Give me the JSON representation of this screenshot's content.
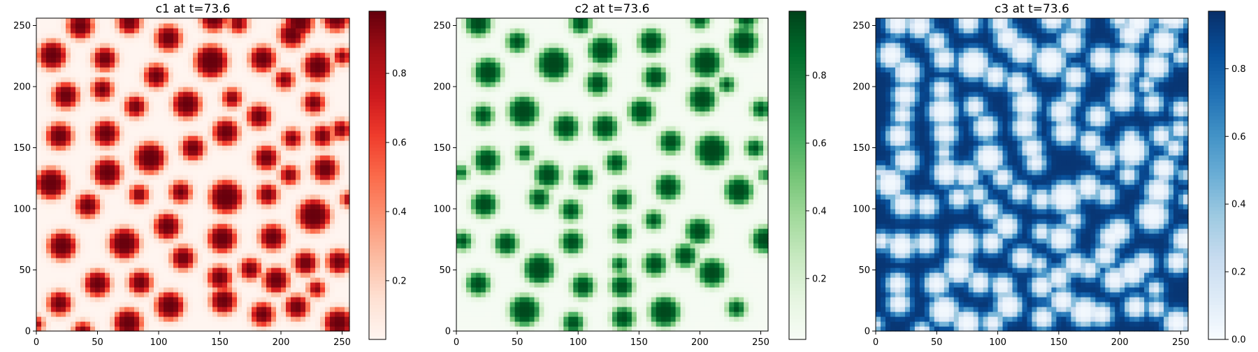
{
  "chart_data": [
    {
      "type": "heatmap",
      "title": "c1 at t=73.6",
      "colormap": "Reds",
      "colors": [
        "#fff5f0",
        "#fee0d2",
        "#fcbba1",
        "#fc9272",
        "#fb6a4a",
        "#ef3b2c",
        "#cb181d",
        "#a50f15",
        "#67000d"
      ],
      "xlim": [
        0,
        256
      ],
      "ylim": [
        0,
        256
      ],
      "xticks": [
        0,
        50,
        100,
        150,
        200,
        250
      ],
      "yticks": [
        0,
        50,
        100,
        150,
        200,
        250
      ],
      "colorbar_range": [
        0.03,
        0.98
      ],
      "colorbar_ticks": [
        0.2,
        0.4,
        0.6,
        0.8
      ],
      "pattern": "spots",
      "spots": [
        [
          36,
          250,
          10
        ],
        [
          76,
          253,
          9
        ],
        [
          145,
          256,
          10
        ],
        [
          165,
          252,
          7
        ],
        [
          215,
          253,
          11
        ],
        [
          245,
          256,
          10
        ],
        [
          13,
          226,
          11
        ],
        [
          56,
          223,
          9
        ],
        [
          108,
          240,
          10
        ],
        [
          143,
          221,
          13
        ],
        [
          185,
          223,
          10
        ],
        [
          209,
          243,
          10
        ],
        [
          230,
          217,
          11
        ],
        [
          250,
          225,
          6
        ],
        [
          24,
          193,
          10
        ],
        [
          54,
          198,
          8
        ],
        [
          98,
          209,
          9
        ],
        [
          123,
          186,
          11
        ],
        [
          81,
          184,
          8
        ],
        [
          160,
          191,
          7
        ],
        [
          203,
          206,
          7
        ],
        [
          227,
          187,
          8
        ],
        [
          19,
          160,
          10
        ],
        [
          57,
          162,
          10
        ],
        [
          93,
          142,
          12
        ],
        [
          128,
          150,
          9
        ],
        [
          155,
          163,
          10
        ],
        [
          182,
          176,
          9
        ],
        [
          209,
          158,
          7
        ],
        [
          234,
          160,
          8
        ],
        [
          249,
          165,
          7
        ],
        [
          12,
          121,
          12
        ],
        [
          58,
          130,
          11
        ],
        [
          84,
          112,
          7
        ],
        [
          118,
          114,
          8
        ],
        [
          155,
          110,
          13
        ],
        [
          188,
          142,
          9
        ],
        [
          207,
          128,
          7
        ],
        [
          236,
          133,
          10
        ],
        [
          42,
          103,
          9
        ],
        [
          107,
          86,
          10
        ],
        [
          189,
          112,
          8
        ],
        [
          227,
          95,
          13
        ],
        [
          255,
          108,
          5
        ],
        [
          21,
          70,
          11
        ],
        [
          72,
          72,
          12
        ],
        [
          152,
          76,
          11
        ],
        [
          193,
          77,
          10
        ],
        [
          120,
          60,
          9
        ],
        [
          175,
          51,
          8
        ],
        [
          220,
          56,
          9
        ],
        [
          247,
          57,
          9
        ],
        [
          50,
          39,
          10
        ],
        [
          85,
          40,
          9
        ],
        [
          150,
          44,
          9
        ],
        [
          196,
          42,
          10
        ],
        [
          229,
          35,
          6
        ],
        [
          19,
          23,
          9
        ],
        [
          109,
          21,
          11
        ],
        [
          153,
          25,
          10
        ],
        [
          185,
          14,
          9
        ],
        [
          213,
          20,
          9
        ],
        [
          75,
          7,
          11
        ],
        [
          38,
          0,
          7
        ],
        [
          247,
          7,
          11
        ],
        [
          0,
          6,
          5
        ]
      ]
    },
    {
      "type": "heatmap",
      "title": "c2 at t=73.6",
      "colormap": "Greens",
      "colors": [
        "#f7fcf5",
        "#e5f5e0",
        "#c7e9c0",
        "#a1d99b",
        "#74c476",
        "#41ab5d",
        "#238b45",
        "#006d2c",
        "#00441b"
      ],
      "xlim": [
        0,
        256
      ],
      "ylim": [
        0,
        256
      ],
      "xticks": [
        0,
        50,
        100,
        150,
        200,
        250
      ],
      "yticks": [
        0,
        50,
        100,
        150,
        200,
        250
      ],
      "colorbar_range": [
        0.02,
        0.99
      ],
      "colorbar_ticks": [
        0.2,
        0.4,
        0.6,
        0.8
      ],
      "pattern": "spots",
      "spots": [
        [
          18,
          252,
          10
        ],
        [
          102,
          252,
          8
        ],
        [
          200,
          255,
          7
        ],
        [
          238,
          256,
          8
        ],
        [
          50,
          237,
          8
        ],
        [
          120,
          230,
          11
        ],
        [
          160,
          237,
          10
        ],
        [
          236,
          237,
          11
        ],
        [
          26,
          212,
          11
        ],
        [
          80,
          219,
          13
        ],
        [
          116,
          203,
          9
        ],
        [
          163,
          208,
          9
        ],
        [
          205,
          220,
          12
        ],
        [
          222,
          202,
          6
        ],
        [
          22,
          177,
          8
        ],
        [
          55,
          180,
          12
        ],
        [
          90,
          167,
          10
        ],
        [
          122,
          167,
          10
        ],
        [
          152,
          180,
          10
        ],
        [
          202,
          190,
          11
        ],
        [
          250,
          182,
          7
        ],
        [
          25,
          140,
          10
        ],
        [
          56,
          146,
          6
        ],
        [
          131,
          138,
          8
        ],
        [
          176,
          155,
          9
        ],
        [
          210,
          148,
          13
        ],
        [
          245,
          150,
          7
        ],
        [
          4,
          130,
          5
        ],
        [
          75,
          128,
          10
        ],
        [
          104,
          126,
          8
        ],
        [
          68,
          109,
          8
        ],
        [
          136,
          108,
          8
        ],
        [
          174,
          118,
          10
        ],
        [
          232,
          115,
          11
        ],
        [
          23,
          104,
          10
        ],
        [
          94,
          99,
          8
        ],
        [
          162,
          91,
          7
        ],
        [
          253,
          128,
          4
        ],
        [
          41,
          72,
          9
        ],
        [
          136,
          81,
          7
        ],
        [
          199,
          82,
          10
        ],
        [
          5,
          74,
          7
        ],
        [
          95,
          73,
          9
        ],
        [
          253,
          75,
          10
        ],
        [
          68,
          51,
          12
        ],
        [
          134,
          55,
          6
        ],
        [
          163,
          55,
          9
        ],
        [
          188,
          62,
          9
        ],
        [
          210,
          48,
          11
        ],
        [
          18,
          39,
          9
        ],
        [
          104,
          37,
          9
        ],
        [
          136,
          37,
          9
        ],
        [
          56,
          17,
          12
        ],
        [
          96,
          7,
          8
        ],
        [
          137,
          11,
          9
        ],
        [
          171,
          16,
          12
        ],
        [
          230,
          19,
          7
        ]
      ]
    },
    {
      "type": "heatmap",
      "title": "c3 at t=73.6",
      "colormap": "Blues",
      "colors": [
        "#f7fbff",
        "#deebf7",
        "#c6dbef",
        "#9ecae1",
        "#6baed6",
        "#4292c6",
        "#2171b5",
        "#08519c",
        "#08306b"
      ],
      "xlim": [
        0,
        256
      ],
      "ylim": [
        0,
        256
      ],
      "xticks": [
        0,
        50,
        100,
        150,
        200,
        250
      ],
      "yticks": [
        0,
        50,
        100,
        150,
        200,
        250
      ],
      "colorbar_range": [
        0.0,
        0.97
      ],
      "colorbar_ticks": [
        0.0,
        0.2,
        0.4,
        0.6,
        0.8
      ],
      "pattern": "holes",
      "background_level": 0.93
    }
  ]
}
